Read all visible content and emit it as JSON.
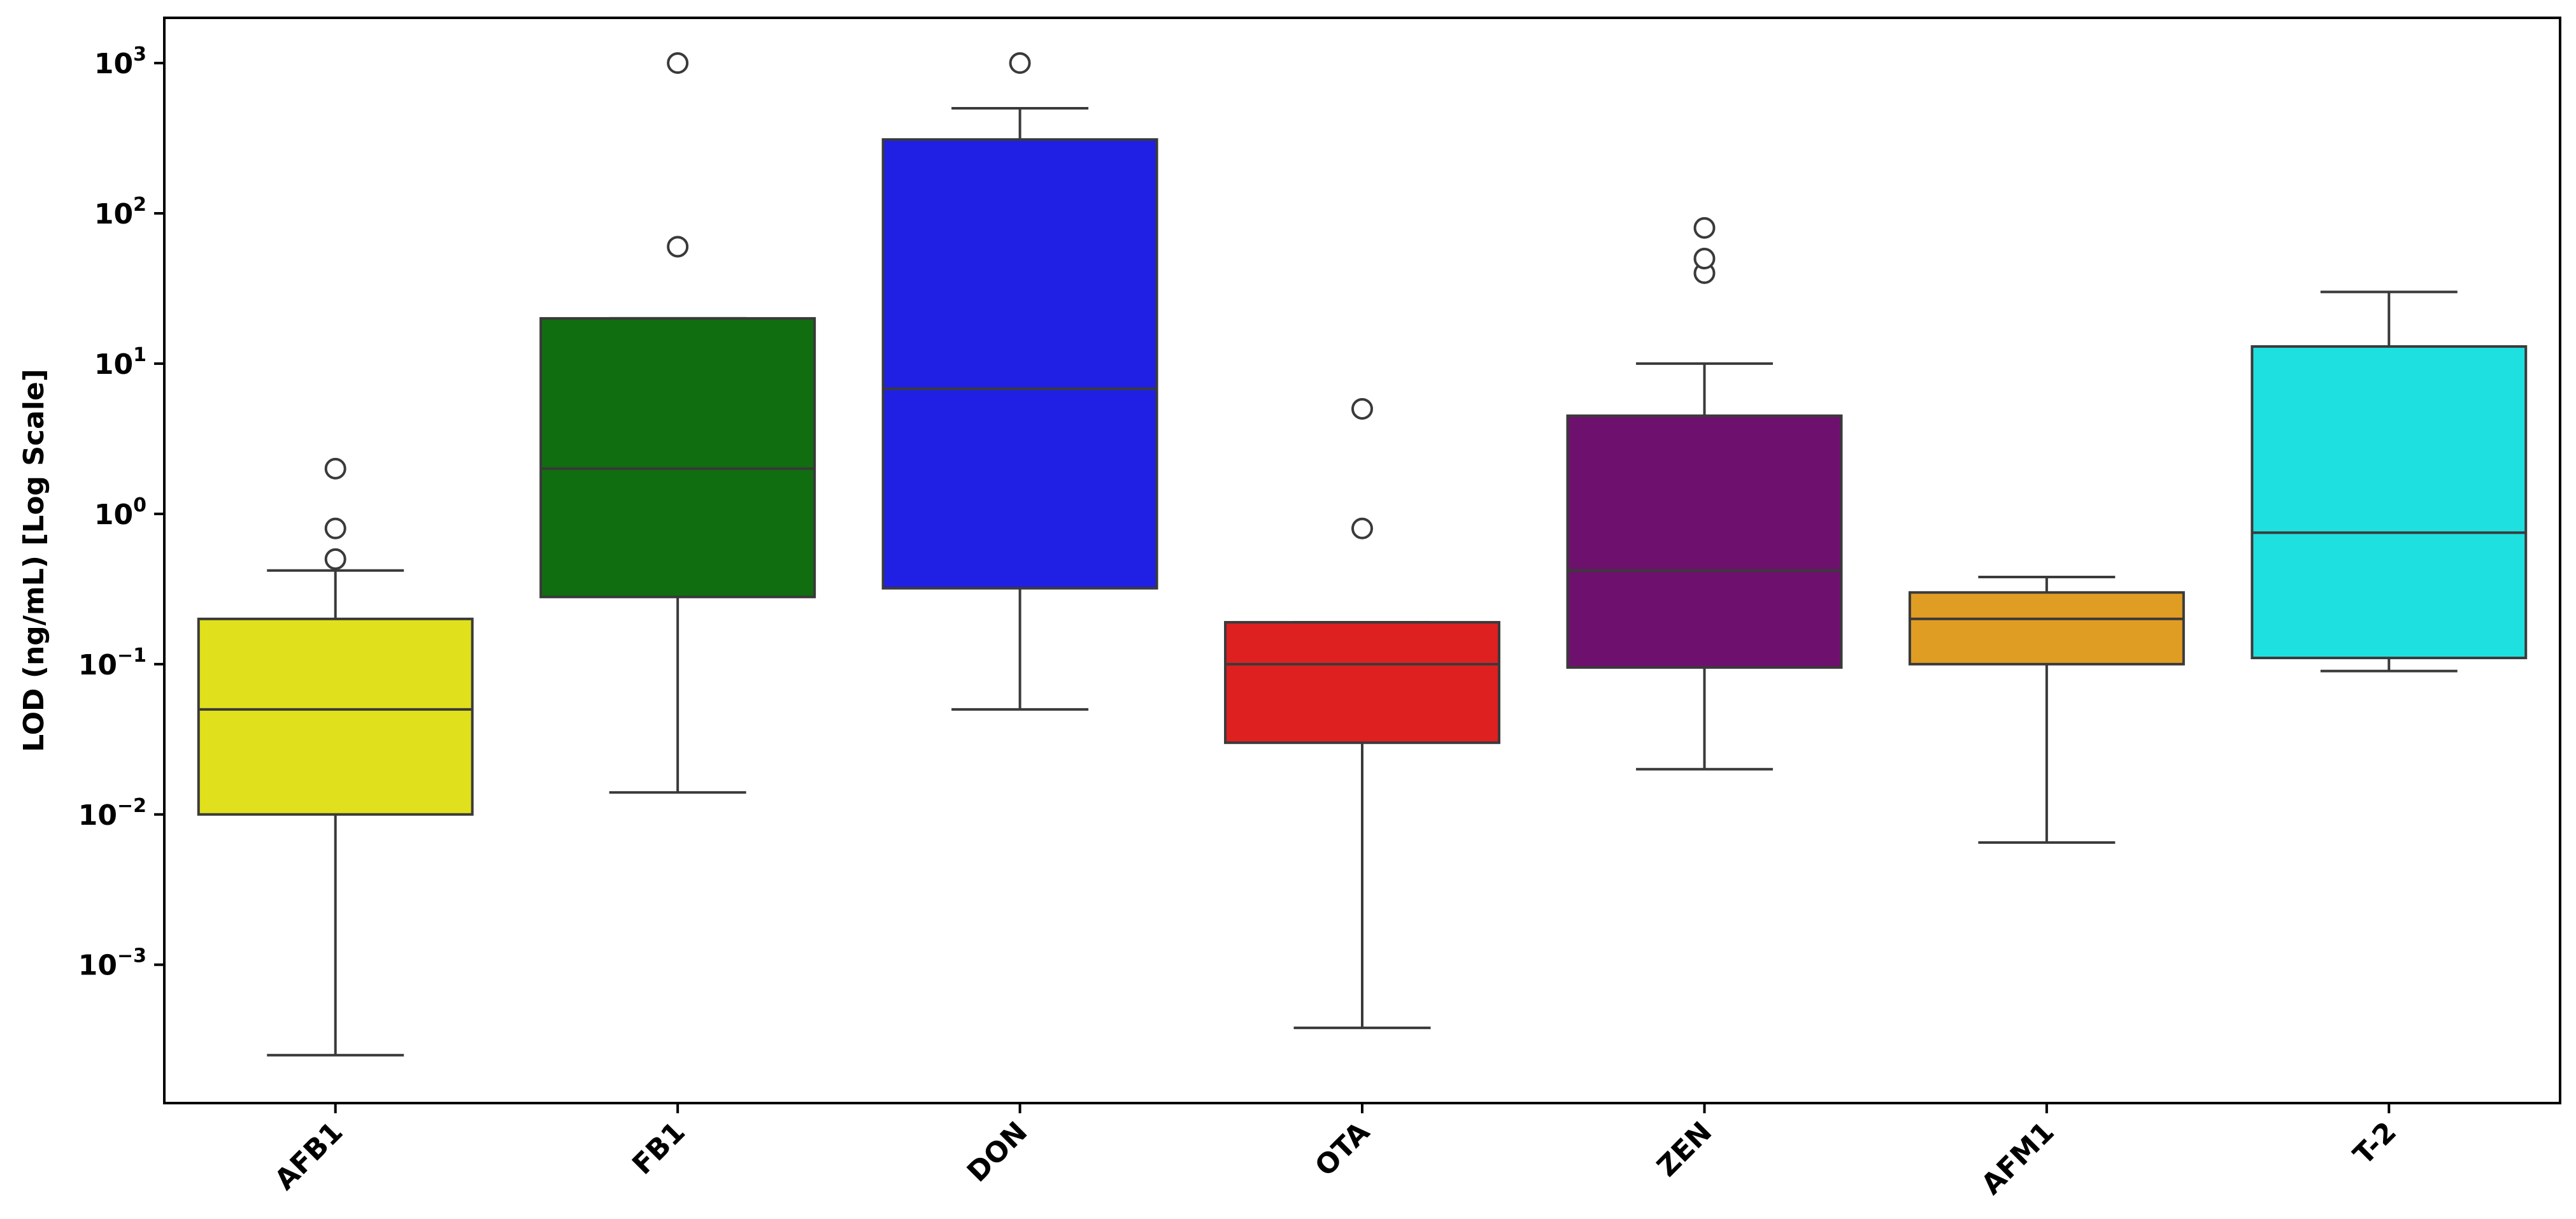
{
  "chart_data": {
    "type": "box",
    "title": "",
    "xlabel": "",
    "ylabel": "LOD (ng/mL) [Log Scale]",
    "yscale": "log",
    "ylim": [
      0.00012,
      2000
    ],
    "yticks": [
      {
        "value": 0.001,
        "base": "10",
        "exp": "−3"
      },
      {
        "value": 0.01,
        "base": "10",
        "exp": "−2"
      },
      {
        "value": 0.1,
        "base": "10",
        "exp": "−1"
      },
      {
        "value": 1,
        "base": "10",
        "exp": "0"
      },
      {
        "value": 10,
        "base": "10",
        "exp": "1"
      },
      {
        "value": 100,
        "base": "10",
        "exp": "2"
      },
      {
        "value": 1000,
        "base": "10",
        "exp": "3"
      }
    ],
    "categories": [
      "AFB1",
      "FB1",
      "DON",
      "OTA",
      "ZEN",
      "AFM1",
      "T-2"
    ],
    "grid": false,
    "legend": "none",
    "boxes": [
      {
        "category": "AFB1",
        "color": "#e0e01d",
        "whisker_low": 0.00025,
        "q1": 0.01,
        "median": 0.05,
        "q3": 0.2,
        "whisker_high": 0.42,
        "outliers": [
          0.5,
          0.8,
          2
        ]
      },
      {
        "category": "FB1",
        "color": "#106e10",
        "whisker_low": 0.014,
        "q1": 0.28,
        "median": 2,
        "q3": 20,
        "whisker_high": 20,
        "outliers": [
          60,
          1000
        ]
      },
      {
        "category": "DON",
        "color": "#1f20e3",
        "whisker_low": 0.05,
        "q1": 0.32,
        "median": 6.8,
        "q3": 310,
        "whisker_high": 500,
        "outliers": [
          1000
        ]
      },
      {
        "category": "OTA",
        "color": "#de2020",
        "whisker_low": 0.00038,
        "q1": 0.03,
        "median": 0.1,
        "q3": 0.19,
        "whisker_high": 0.19,
        "outliers": [
          0.8,
          5
        ]
      },
      {
        "category": "ZEN",
        "color": "#6e116e",
        "whisker_low": 0.02,
        "q1": 0.095,
        "median": 0.42,
        "q3": 4.5,
        "whisker_high": 10,
        "outliers": [
          40,
          50,
          80
        ]
      },
      {
        "category": "AFM1",
        "color": "#e09d23",
        "whisker_low": 0.0065,
        "q1": 0.1,
        "median": 0.2,
        "q3": 0.3,
        "whisker_high": 0.38,
        "outliers": []
      },
      {
        "category": "T-2",
        "color": "#1fe0e0",
        "whisker_low": 0.09,
        "q1": 0.11,
        "median": 0.75,
        "q3": 13,
        "whisker_high": 30,
        "outliers": []
      }
    ]
  }
}
